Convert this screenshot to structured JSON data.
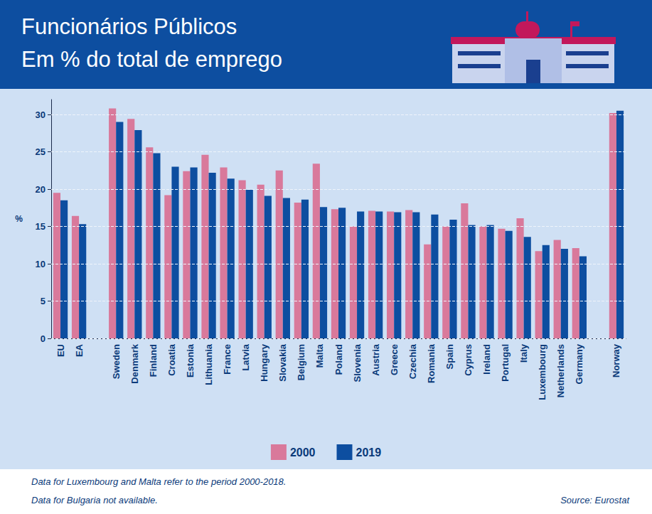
{
  "chart_data": {
    "type": "bar",
    "title": "Funcionários Públicos",
    "subtitle": "Em % do total de emprego",
    "y_label": "%",
    "categories": [
      "EU",
      "EA",
      null,
      "Sweden",
      "Denmark",
      "Finland",
      "Croatia",
      "Estonia",
      "Lithuania",
      "France",
      "Latvia",
      "Hungary",
      "Slovakia",
      "Belgium",
      "Malta",
      "Poland",
      "Slovenia",
      "Austria",
      "Greece",
      "Czechia",
      "Romania",
      "Spain",
      "Cyprus",
      "Ireland",
      "Portugal",
      "Italy",
      "Luxembourg",
      "Netherlands",
      "Germany",
      null,
      "Norway"
    ],
    "series": [
      {
        "name": "2000",
        "color": "#d9799b",
        "values": [
          19.5,
          16.4,
          null,
          30.8,
          29.4,
          25.6,
          19.2,
          22.4,
          24.6,
          22.9,
          21.2,
          20.6,
          22.5,
          18.2,
          23.4,
          17.3,
          15.0,
          17.1,
          17.0,
          17.2,
          12.6,
          15.0,
          18.1,
          15.0,
          14.7,
          16.1,
          11.7,
          13.2,
          12.1,
          null,
          30.2
        ]
      },
      {
        "name": "2019",
        "color": "#0d4ea0",
        "values": [
          18.5,
          15.3,
          null,
          29.0,
          27.9,
          24.8,
          23.0,
          22.9,
          22.2,
          21.4,
          19.9,
          19.1,
          18.8,
          18.6,
          17.6,
          17.5,
          17.0,
          17.0,
          16.9,
          16.9,
          16.6,
          15.9,
          15.2,
          15.2,
          14.4,
          13.6,
          12.5,
          12.0,
          11.0,
          null,
          30.5
        ]
      }
    ],
    "ylim": [
      0,
      32
    ],
    "yticks": [
      0,
      5,
      10,
      15,
      20,
      25,
      30
    ],
    "grid": true,
    "legend": "bottom",
    "notes": [
      "Data for Luxembourg and Malta refer to the period 2000-2018.",
      "Data for Bulgaria not available."
    ],
    "source": "Source: Eurostat"
  }
}
